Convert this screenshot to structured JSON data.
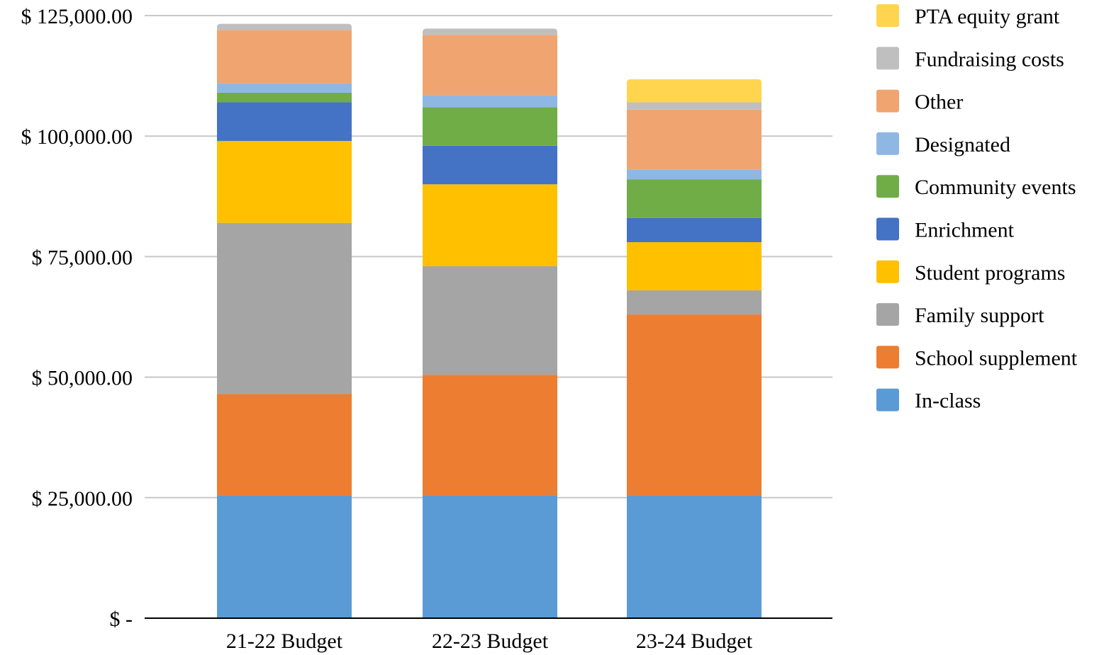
{
  "chart_data": {
    "type": "bar",
    "stacked": true,
    "title": "",
    "xlabel": "",
    "ylabel": "",
    "categories": [
      "21-22 Budget",
      "22-23 Budget",
      "23-24 Budget"
    ],
    "ylim": [
      0,
      125000
    ],
    "yticks": [
      0,
      25000,
      50000,
      75000,
      100000,
      125000
    ],
    "ytick_labels": [
      "$ -",
      "$ 25,000.00",
      "$ 50,000.00",
      "$ 75,000.00",
      "$ 100,000.00",
      "$ 125,000.00"
    ],
    "grid": true,
    "legend_position": "right",
    "series": [
      {
        "name": "In-class",
        "color": "#5B9BD5",
        "values": [
          25500,
          25500,
          25500
        ]
      },
      {
        "name": "School supplement",
        "color": "#ED7D31",
        "values": [
          21000,
          25000,
          37500
        ]
      },
      {
        "name": "Family support",
        "color": "#A5A5A5",
        "values": [
          35500,
          22500,
          5000
        ]
      },
      {
        "name": "Student programs",
        "color": "#FFC000",
        "values": [
          17000,
          17000,
          10000
        ]
      },
      {
        "name": "Enrichment",
        "color": "#4472C4",
        "values": [
          8000,
          8000,
          5000
        ]
      },
      {
        "name": "Community events",
        "color": "#70AD47",
        "values": [
          2000,
          8000,
          8000
        ]
      },
      {
        "name": "Designated",
        "color": "#8FB7E3",
        "values": [
          2000,
          2500,
          2000
        ]
      },
      {
        "name": "Other",
        "color": "#F0A570",
        "values": [
          11000,
          12500,
          12500
        ]
      },
      {
        "name": "Fundraising costs",
        "color": "#BFBFBF",
        "values": [
          1300,
          1300,
          1500
        ]
      },
      {
        "name": "PTA equity grant",
        "color": "#FFD54F",
        "values": [
          0,
          0,
          4800
        ]
      }
    ]
  }
}
